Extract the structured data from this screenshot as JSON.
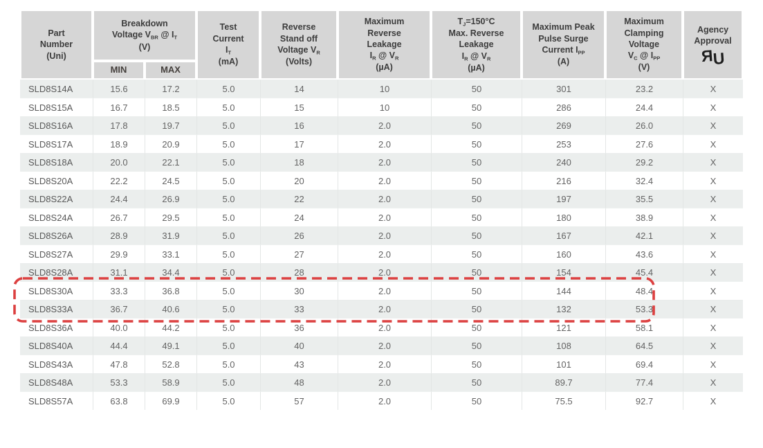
{
  "colors": {
    "header_bg": "#d6d6d6",
    "stripe": "#ebeeed",
    "highlight": "#dc4040",
    "body_text": "#636363",
    "header_text": "#3c3c3c"
  },
  "agency_logo": "ul-recognized-component-mark",
  "table": {
    "cell_keys": [
      "part-number",
      "vbr-min",
      "vbr-max",
      "test-current",
      "standoff-voltage",
      "max-reverse-leakage",
      "tj150-reverse-leakage",
      "peak-pulse-current",
      "clamping-voltage",
      "agency-approval"
    ],
    "columns": [
      {
        "key": "part-number",
        "lines": [
          "Part",
          "Number",
          "(Uni)"
        ],
        "width": 105
      },
      {
        "key": "breakdown-voltage",
        "lines": [
          "Breakdown",
          "Voltage V~BR~ @ I~T~",
          "(V)"
        ],
        "subcols": [
          {
            "key": "vbr-min",
            "label": "MIN",
            "width": 75
          },
          {
            "key": "vbr-max",
            "label": "MAX",
            "width": 75
          }
        ]
      },
      {
        "key": "test-current",
        "lines": [
          "Test",
          "Current",
          "I~T~",
          "(mA)"
        ],
        "width": 92
      },
      {
        "key": "standoff-voltage",
        "lines": [
          "Reverse",
          "Stand off",
          "Voltage V~R~",
          "(Volts)"
        ],
        "width": 112
      },
      {
        "key": "max-reverse-leakage",
        "lines": [
          "Maximum",
          "Reverse",
          "Leakage",
          "I~R~ @ V~R~",
          "(µA)"
        ],
        "width": 135
      },
      {
        "key": "tj150-reverse-leakage",
        "lines": [
          "T~J~=150°C",
          "Max. Reverse",
          "Leakage",
          "I~R~ @ V~R~",
          "(µA)"
        ],
        "width": 131
      },
      {
        "key": "peak-pulse-current",
        "lines": [
          "Maximum Peak",
          "Pulse Surge",
          "Current I~PP~",
          "(A)"
        ],
        "width": 121
      },
      {
        "key": "clamping-voltage",
        "lines": [
          "Maximum",
          "Clamping",
          "Voltage",
          "V~C~ @ I~PP~",
          "(V)"
        ],
        "width": 112
      },
      {
        "key": "agency-approval",
        "lines": [
          "Agency",
          "Approval"
        ],
        "width": 87,
        "logo": "ul"
      }
    ],
    "rows": [
      {
        "highlighted": false,
        "cells": [
          "SLD8S14A",
          "15.6",
          "17.2",
          "5.0",
          "14",
          "10",
          "50",
          "301",
          "23.2",
          "X"
        ]
      },
      {
        "highlighted": false,
        "cells": [
          "SLD8S15A",
          "16.7",
          "18.5",
          "5.0",
          "15",
          "10",
          "50",
          "286",
          "24.4",
          "X"
        ]
      },
      {
        "highlighted": false,
        "cells": [
          "SLD8S16A",
          "17.8",
          "19.7",
          "5.0",
          "16",
          "2.0",
          "50",
          "269",
          "26.0",
          "X"
        ]
      },
      {
        "highlighted": false,
        "cells": [
          "SLD8S17A",
          "18.9",
          "20.9",
          "5.0",
          "17",
          "2.0",
          "50",
          "253",
          "27.6",
          "X"
        ]
      },
      {
        "highlighted": false,
        "cells": [
          "SLD8S18A",
          "20.0",
          "22.1",
          "5.0",
          "18",
          "2.0",
          "50",
          "240",
          "29.2",
          "X"
        ]
      },
      {
        "highlighted": false,
        "cells": [
          "SLD8S20A",
          "22.2",
          "24.5",
          "5.0",
          "20",
          "2.0",
          "50",
          "216",
          "32.4",
          "X"
        ]
      },
      {
        "highlighted": false,
        "cells": [
          "SLD8S22A",
          "24.4",
          "26.9",
          "5.0",
          "22",
          "2.0",
          "50",
          "197",
          "35.5",
          "X"
        ]
      },
      {
        "highlighted": false,
        "cells": [
          "SLD8S24A",
          "26.7",
          "29.5",
          "5.0",
          "24",
          "2.0",
          "50",
          "180",
          "38.9",
          "X"
        ]
      },
      {
        "highlighted": false,
        "cells": [
          "SLD8S26A",
          "28.9",
          "31.9",
          "5.0",
          "26",
          "2.0",
          "50",
          "167",
          "42.1",
          "X"
        ]
      },
      {
        "highlighted": false,
        "cells": [
          "SLD8S27A",
          "29.9",
          "33.1",
          "5.0",
          "27",
          "2.0",
          "50",
          "160",
          "43.6",
          "X"
        ]
      },
      {
        "highlighted": false,
        "cells": [
          "SLD8S28A",
          "31.1",
          "34.4",
          "5.0",
          "28",
          "2.0",
          "50",
          "154",
          "45.4",
          "X"
        ]
      },
      {
        "highlighted": true,
        "cells": [
          "SLD8S30A",
          "33.3",
          "36.8",
          "5.0",
          "30",
          "2.0",
          "50",
          "144",
          "48.4",
          "X"
        ]
      },
      {
        "highlighted": true,
        "cells": [
          "SLD8S33A",
          "36.7",
          "40.6",
          "5.0",
          "33",
          "2.0",
          "50",
          "132",
          "53.3",
          "X"
        ]
      },
      {
        "highlighted": false,
        "cells": [
          "SLD8S36A",
          "40.0",
          "44.2",
          "5.0",
          "36",
          "2.0",
          "50",
          "121",
          "58.1",
          "X"
        ]
      },
      {
        "highlighted": false,
        "cells": [
          "SLD8S40A",
          "44.4",
          "49.1",
          "5.0",
          "40",
          "2.0",
          "50",
          "108",
          "64.5",
          "X"
        ]
      },
      {
        "highlighted": false,
        "cells": [
          "SLD8S43A",
          "47.8",
          "52.8",
          "5.0",
          "43",
          "2.0",
          "50",
          "101",
          "69.4",
          "X"
        ]
      },
      {
        "highlighted": false,
        "cells": [
          "SLD8S48A",
          "53.3",
          "58.9",
          "5.0",
          "48",
          "2.0",
          "50",
          "89.7",
          "77.4",
          "X"
        ]
      },
      {
        "highlighted": false,
        "cells": [
          "SLD8S57A",
          "63.8",
          "69.9",
          "5.0",
          "57",
          "2.0",
          "50",
          "75.5",
          "92.7",
          "X"
        ]
      }
    ]
  }
}
